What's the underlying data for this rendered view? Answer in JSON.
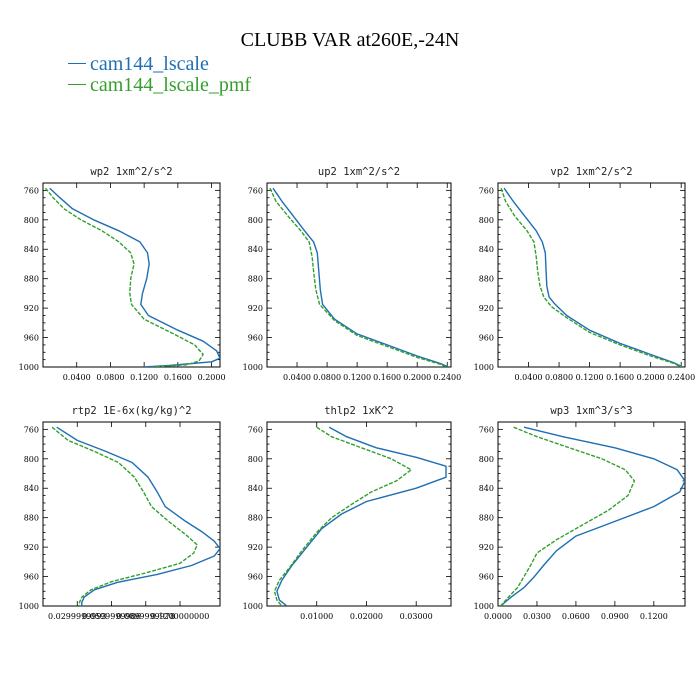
{
  "title": "CLUBB VAR at260E,-24N",
  "legend": [
    {
      "name": "cam144_lscale",
      "color": "#1f6fb4"
    },
    {
      "name": "cam144_lscale_pmf",
      "color": "#33a02c"
    }
  ],
  "chart_data": [
    {
      "type": "line",
      "title": "wp2  1xm^2/s^2",
      "ylim": [
        1000,
        750
      ],
      "yticks": [
        760,
        800,
        840,
        880,
        920,
        960,
        1000
      ],
      "xlim": [
        0.0,
        0.21
      ],
      "xticks": [
        {
          "v": 0.04,
          "label": "0.0400"
        },
        {
          "v": 0.08,
          "label": "0.0800"
        },
        {
          "v": 0.12,
          "label": "0.1200"
        },
        {
          "v": 0.16,
          "label": "0.1600"
        },
        {
          "v": 0.2,
          "label": "0.2000"
        }
      ],
      "series": [
        {
          "name": "cam144_lscale",
          "color": "#1f6fb4",
          "dash": false,
          "points": [
            [
              0.008,
              757
            ],
            [
              0.02,
              770
            ],
            [
              0.035,
              785
            ],
            [
              0.06,
              800
            ],
            [
              0.09,
              815
            ],
            [
              0.115,
              830
            ],
            [
              0.124,
              845
            ],
            [
              0.126,
              860
            ],
            [
              0.123,
              880
            ],
            [
              0.118,
              900
            ],
            [
              0.116,
              915
            ],
            [
              0.125,
              930
            ],
            [
              0.16,
              950
            ],
            [
              0.19,
              965
            ],
            [
              0.206,
              978
            ],
            [
              0.21,
              988
            ],
            [
              0.2,
              993
            ],
            [
              0.15,
              998
            ],
            [
              0.12,
              1000
            ]
          ]
        },
        {
          "name": "cam144_lscale_pmf",
          "color": "#33a02c",
          "dash": true,
          "points": [
            [
              0.003,
              757
            ],
            [
              0.012,
              770
            ],
            [
              0.025,
              785
            ],
            [
              0.045,
              800
            ],
            [
              0.07,
              815
            ],
            [
              0.09,
              830
            ],
            [
              0.104,
              845
            ],
            [
              0.108,
              860
            ],
            [
              0.104,
              880
            ],
            [
              0.103,
              900
            ],
            [
              0.105,
              915
            ],
            [
              0.12,
              935
            ],
            [
              0.155,
              955
            ],
            [
              0.18,
              970
            ],
            [
              0.19,
              983
            ],
            [
              0.185,
              992
            ],
            [
              0.17,
              997
            ],
            [
              0.13,
              1000
            ]
          ]
        }
      ]
    },
    {
      "type": "line",
      "title": "up2  1xm^2/s^2",
      "ylim": [
        1000,
        750
      ],
      "yticks": [
        760,
        800,
        840,
        880,
        920,
        960,
        1000
      ],
      "xlim": [
        0.0,
        0.245
      ],
      "xticks": [
        {
          "v": 0.04,
          "label": "0.0400"
        },
        {
          "v": 0.08,
          "label": "0.0800"
        },
        {
          "v": 0.12,
          "label": "0.1200"
        },
        {
          "v": 0.16,
          "label": "0.1600"
        },
        {
          "v": 0.2,
          "label": "0.2000"
        },
        {
          "v": 0.24,
          "label": "0.2400"
        }
      ],
      "series": [
        {
          "name": "cam144_lscale",
          "color": "#1f6fb4",
          "dash": false,
          "points": [
            [
              0.008,
              757
            ],
            [
              0.02,
              775
            ],
            [
              0.035,
              795
            ],
            [
              0.05,
              815
            ],
            [
              0.062,
              830
            ],
            [
              0.067,
              845
            ],
            [
              0.069,
              870
            ],
            [
              0.071,
              895
            ],
            [
              0.074,
              915
            ],
            [
              0.09,
              935
            ],
            [
              0.12,
              955
            ],
            [
              0.16,
              970
            ],
            [
              0.2,
              985
            ],
            [
              0.23,
              995
            ],
            [
              0.242,
              1000
            ]
          ]
        },
        {
          "name": "cam144_lscale_pmf",
          "color": "#33a02c",
          "dash": true,
          "points": [
            [
              0.004,
              757
            ],
            [
              0.012,
              775
            ],
            [
              0.028,
              795
            ],
            [
              0.045,
              815
            ],
            [
              0.056,
              830
            ],
            [
              0.06,
              850
            ],
            [
              0.062,
              870
            ],
            [
              0.065,
              895
            ],
            [
              0.07,
              915
            ],
            [
              0.09,
              937
            ],
            [
              0.12,
              957
            ],
            [
              0.16,
              972
            ],
            [
              0.2,
              987
            ],
            [
              0.23,
              996
            ],
            [
              0.24,
              1000
            ]
          ]
        }
      ]
    },
    {
      "type": "line",
      "title": "vp2  1xm^2/s^2",
      "ylim": [
        1000,
        750
      ],
      "yticks": [
        760,
        800,
        840,
        880,
        920,
        960,
        1000
      ],
      "xlim": [
        0.0,
        0.245
      ],
      "xticks": [
        {
          "v": 0.04,
          "label": "0.0400"
        },
        {
          "v": 0.08,
          "label": "0.0800"
        },
        {
          "v": 0.12,
          "label": "0.1200"
        },
        {
          "v": 0.16,
          "label": "0.1600"
        },
        {
          "v": 0.2,
          "label": "0.2000"
        },
        {
          "v": 0.24,
          "label": "0.2400"
        }
      ],
      "series": [
        {
          "name": "cam144_lscale",
          "color": "#1f6fb4",
          "dash": false,
          "points": [
            [
              0.008,
              757
            ],
            [
              0.02,
              775
            ],
            [
              0.035,
              795
            ],
            [
              0.05,
              815
            ],
            [
              0.058,
              830
            ],
            [
              0.062,
              845
            ],
            [
              0.063,
              870
            ],
            [
              0.064,
              890
            ],
            [
              0.067,
              905
            ],
            [
              0.075,
              915
            ],
            [
              0.09,
              930
            ],
            [
              0.12,
              950
            ],
            [
              0.16,
              968
            ],
            [
              0.2,
              983
            ],
            [
              0.23,
              994
            ],
            [
              0.242,
              1000
            ]
          ]
        },
        {
          "name": "cam144_lscale_pmf",
          "color": "#33a02c",
          "dash": true,
          "points": [
            [
              0.004,
              757
            ],
            [
              0.01,
              775
            ],
            [
              0.022,
              795
            ],
            [
              0.038,
              815
            ],
            [
              0.047,
              830
            ],
            [
              0.05,
              850
            ],
            [
              0.052,
              870
            ],
            [
              0.055,
              890
            ],
            [
              0.06,
              905
            ],
            [
              0.07,
              918
            ],
            [
              0.09,
              933
            ],
            [
              0.12,
              953
            ],
            [
              0.16,
              970
            ],
            [
              0.2,
              985
            ],
            [
              0.23,
              995
            ],
            [
              0.24,
              1000
            ]
          ]
        }
      ]
    },
    {
      "type": "line",
      "title": "rtp2  1E-6x(kg/kg)^2",
      "ylim": [
        1000,
        750
      ],
      "yticks": [
        760,
        800,
        840,
        880,
        920,
        960,
        1000
      ],
      "xlim": [
        0.0,
        0.155
      ],
      "xticks": [
        {
          "v": 0.03,
          "label": "0.0299999993"
        },
        {
          "v": 0.06,
          "label": "0.0599999986"
        },
        {
          "v": 0.09,
          "label": "0.0899999978"
        },
        {
          "v": 0.12,
          "label": "0.1200000000"
        }
      ],
      "series": [
        {
          "name": "cam144_lscale",
          "color": "#1f6fb4",
          "dash": false,
          "points": [
            [
              0.012,
              757
            ],
            [
              0.03,
              775
            ],
            [
              0.055,
              790
            ],
            [
              0.078,
              805
            ],
            [
              0.092,
              825
            ],
            [
              0.1,
              845
            ],
            [
              0.107,
              865
            ],
            [
              0.125,
              885
            ],
            [
              0.14,
              900
            ],
            [
              0.15,
              912
            ],
            [
              0.155,
              922
            ],
            [
              0.15,
              932
            ],
            [
              0.13,
              945
            ],
            [
              0.1,
              957
            ],
            [
              0.065,
              968
            ],
            [
              0.045,
              978
            ],
            [
              0.036,
              988
            ],
            [
              0.034,
              995
            ],
            [
              0.034,
              1000
            ]
          ]
        },
        {
          "name": "cam144_lscale_pmf",
          "color": "#33a02c",
          "dash": true,
          "points": [
            [
              0.008,
              757
            ],
            [
              0.022,
              775
            ],
            [
              0.045,
              790
            ],
            [
              0.066,
              805
            ],
            [
              0.08,
              825
            ],
            [
              0.088,
              845
            ],
            [
              0.095,
              865
            ],
            [
              0.11,
              885
            ],
            [
              0.125,
              903
            ],
            [
              0.135,
              917
            ],
            [
              0.132,
              928
            ],
            [
              0.12,
              942
            ],
            [
              0.09,
              955
            ],
            [
              0.06,
              967
            ],
            [
              0.042,
              978
            ],
            [
              0.034,
              988
            ],
            [
              0.032,
              995
            ],
            [
              0.032,
              1000
            ]
          ]
        }
      ]
    },
    {
      "type": "line",
      "title": "thlp2  1xK^2",
      "ylim": [
        1000,
        750
      ],
      "yticks": [
        760,
        800,
        840,
        880,
        920,
        960,
        1000
      ],
      "xlim": [
        0.0,
        0.037
      ],
      "xticks": [
        {
          "v": 0.01,
          "label": "0.01000"
        },
        {
          "v": 0.02,
          "label": "0.02000"
        },
        {
          "v": 0.03,
          "label": "0.03000"
        }
      ],
      "series": [
        {
          "name": "cam144_lscale",
          "color": "#1f6fb4",
          "dash": false,
          "points": [
            [
              0.0125,
              757
            ],
            [
              0.016,
              770
            ],
            [
              0.022,
              785
            ],
            [
              0.03,
              798
            ],
            [
              0.036,
              810
            ],
            [
              0.036,
              825
            ],
            [
              0.03,
              840
            ],
            [
              0.02,
              858
            ],
            [
              0.015,
              875
            ],
            [
              0.011,
              895
            ],
            [
              0.008,
              920
            ],
            [
              0.005,
              945
            ],
            [
              0.003,
              965
            ],
            [
              0.002,
              980
            ],
            [
              0.0025,
              992
            ],
            [
              0.004,
              1000
            ]
          ]
        },
        {
          "name": "cam144_lscale_pmf",
          "color": "#33a02c",
          "dash": true,
          "points": [
            [
              0.01,
              757
            ],
            [
              0.013,
              770
            ],
            [
              0.019,
              785
            ],
            [
              0.025,
              800
            ],
            [
              0.029,
              815
            ],
            [
              0.026,
              830
            ],
            [
              0.021,
              845
            ],
            [
              0.017,
              862
            ],
            [
              0.013,
              880
            ],
            [
              0.01,
              900
            ],
            [
              0.007,
              925
            ],
            [
              0.0045,
              948
            ],
            [
              0.0025,
              965
            ],
            [
              0.0015,
              980
            ],
            [
              0.002,
              992
            ],
            [
              0.003,
              1000
            ]
          ]
        }
      ]
    },
    {
      "type": "line",
      "title": "wp3  1xm^3/s^3",
      "ylim": [
        1000,
        750
      ],
      "yticks": [
        760,
        800,
        840,
        880,
        920,
        960,
        1000
      ],
      "xlim": [
        0.0,
        0.144
      ],
      "xticks": [
        {
          "v": 0.0,
          "label": "0.0000"
        },
        {
          "v": 0.03,
          "label": "0.0300"
        },
        {
          "v": 0.06,
          "label": "0.0600"
        },
        {
          "v": 0.09,
          "label": "0.0900"
        },
        {
          "v": 0.12,
          "label": "0.1200"
        }
      ],
      "series": [
        {
          "name": "cam144_lscale",
          "color": "#1f6fb4",
          "dash": false,
          "points": [
            [
              0.02,
              757
            ],
            [
              0.05,
              770
            ],
            [
              0.09,
              785
            ],
            [
              0.12,
              800
            ],
            [
              0.138,
              815
            ],
            [
              0.144,
              830
            ],
            [
              0.14,
              845
            ],
            [
              0.12,
              865
            ],
            [
              0.09,
              885
            ],
            [
              0.06,
              905
            ],
            [
              0.045,
              925
            ],
            [
              0.035,
              945
            ],
            [
              0.028,
              960
            ],
            [
              0.02,
              975
            ],
            [
              0.01,
              988
            ],
            [
              0.002,
              1000
            ]
          ]
        },
        {
          "name": "cam144_lscale_pmf",
          "color": "#33a02c",
          "dash": true,
          "points": [
            [
              0.012,
              757
            ],
            [
              0.03,
              770
            ],
            [
              0.055,
              785
            ],
            [
              0.08,
              800
            ],
            [
              0.098,
              815
            ],
            [
              0.105,
              830
            ],
            [
              0.1,
              850
            ],
            [
              0.085,
              870
            ],
            [
              0.065,
              890
            ],
            [
              0.045,
              910
            ],
            [
              0.03,
              928
            ],
            [
              0.025,
              945
            ],
            [
              0.02,
              960
            ],
            [
              0.015,
              975
            ],
            [
              0.008,
              988
            ],
            [
              0.002,
              1000
            ]
          ]
        }
      ]
    }
  ]
}
